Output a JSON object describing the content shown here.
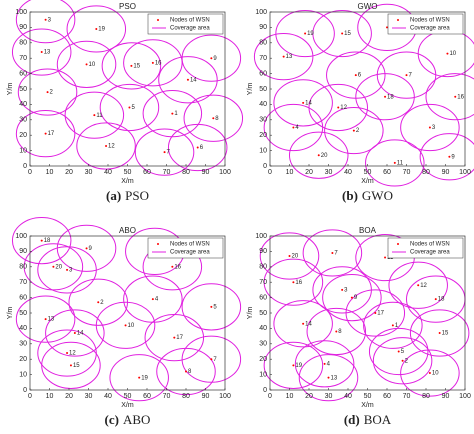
{
  "chart_data": [
    {
      "type": "scatter",
      "title": "PSO",
      "caption_label": "(a)",
      "caption": "PSO",
      "xlabel": "X/m",
      "ylabel": "Y/m",
      "xlim": [
        0,
        100
      ],
      "ylim": [
        0,
        100
      ],
      "xticks": [
        0,
        10,
        20,
        30,
        40,
        50,
        60,
        70,
        80,
        90,
        100
      ],
      "yticks": [
        0,
        10,
        20,
        30,
        40,
        50,
        60,
        70,
        80,
        90,
        100
      ],
      "legend": "upper right",
      "series": [
        {
          "name": "Nodes of WSN",
          "color": "#ff0000",
          "labels": [
            "3",
            "19",
            "13",
            "10",
            "15",
            "16",
            "9",
            "14",
            "2",
            "5",
            "11",
            "1",
            "8",
            "17",
            "12",
            "6",
            "7"
          ],
          "x": [
            8,
            34,
            6,
            29,
            52,
            63,
            93,
            81,
            9,
            51,
            33,
            73,
            94,
            8,
            39,
            86,
            69
          ],
          "values": [
            95,
            89,
            74,
            66,
            65,
            67,
            70,
            56,
            48,
            38,
            33,
            34,
            31,
            21,
            13,
            12,
            9
          ]
        }
      ],
      "coverage": {
        "name": "Coverage area",
        "color": "#e020e0",
        "radius": 15
      }
    },
    {
      "type": "scatter",
      "title": "GWO",
      "caption_label": "(b)",
      "caption": "GWO",
      "xlabel": "X/m",
      "ylabel": "Y/m",
      "xlim": [
        0,
        100
      ],
      "ylim": [
        0,
        100
      ],
      "xticks": [
        0,
        10,
        20,
        30,
        40,
        50,
        60,
        70,
        80,
        90,
        100
      ],
      "yticks": [
        0,
        10,
        20,
        30,
        40,
        50,
        60,
        70,
        80,
        90,
        100
      ],
      "legend": "upper right",
      "series": [
        {
          "name": "Nodes of WSN",
          "color": "#ff0000",
          "labels": [
            "19",
            "15",
            "17",
            "13",
            "10",
            "6",
            "7",
            "18",
            "14",
            "12",
            "16",
            "4",
            "2",
            "3",
            "20",
            "11",
            "9"
          ],
          "x": [
            18,
            37,
            60,
            7,
            91,
            44,
            70,
            59,
            17,
            35,
            95,
            12,
            43,
            82,
            25,
            64,
            92
          ],
          "values": [
            86,
            86,
            90,
            71,
            73,
            59,
            59,
            45,
            41,
            38,
            45,
            25,
            23,
            25,
            7,
            2,
            6
          ]
        }
      ],
      "coverage": {
        "name": "Coverage area",
        "color": "#e020e0",
        "radius": 15
      }
    },
    {
      "type": "scatter",
      "title": "ABO",
      "caption_label": "(c)",
      "caption": "ABO",
      "xlabel": "X/m",
      "ylabel": "Y/m",
      "xlim": [
        0,
        100
      ],
      "ylim": [
        0,
        100
      ],
      "xticks": [
        0,
        10,
        20,
        30,
        40,
        50,
        60,
        70,
        80,
        90,
        100
      ],
      "yticks": [
        0,
        10,
        20,
        30,
        40,
        50,
        60,
        70,
        80,
        90,
        100
      ],
      "legend": "upper right",
      "series": [
        {
          "name": "Nodes of WSN",
          "color": "#ff0000",
          "labels": [
            "18",
            "9",
            "20",
            "3",
            "11",
            "16",
            "2",
            "4",
            "5",
            "13",
            "10",
            "14",
            "17",
            "12",
            "15",
            "7",
            "8",
            "19"
          ],
          "x": [
            6,
            29,
            12,
            19,
            64,
            73,
            35,
            63,
            93,
            8,
            49,
            23,
            74,
            19,
            21,
            93,
            80,
            56
          ],
          "values": [
            97,
            92,
            80,
            78,
            90,
            80,
            57,
            59,
            54,
            46,
            42,
            37,
            34,
            24,
            16,
            20,
            12,
            8
          ]
        }
      ],
      "coverage": {
        "name": "Coverage area",
        "color": "#e020e0",
        "radius": 15
      }
    },
    {
      "type": "scatter",
      "title": "BOA",
      "caption_label": "(d)",
      "caption": "BOA",
      "xlabel": "X/m",
      "ylabel": "Y/m",
      "xlim": [
        0,
        100
      ],
      "ylim": [
        0,
        100
      ],
      "xticks": [
        0,
        10,
        20,
        30,
        40,
        50,
        60,
        70,
        80,
        90,
        100
      ],
      "yticks": [
        0,
        10,
        20,
        30,
        40,
        50,
        60,
        70,
        80,
        90,
        100
      ],
      "legend": "upper right",
      "series": [
        {
          "name": "Nodes of WSN",
          "color": "#ff0000",
          "labels": [
            "20",
            "7",
            "11",
            "16",
            "12",
            "3",
            "9",
            "18",
            "17",
            "14",
            "8",
            "1",
            "15",
            "5",
            "19",
            "4",
            "2",
            "10",
            "13"
          ],
          "x": [
            10,
            32,
            59,
            12,
            76,
            37,
            42,
            85,
            54,
            17,
            34,
            63,
            87,
            66,
            12,
            28,
            68,
            82,
            30
          ],
          "values": [
            87,
            89,
            86,
            70,
            68,
            65,
            60,
            59,
            50,
            43,
            38,
            42,
            37,
            25,
            16,
            17,
            19,
            11,
            8
          ]
        }
      ],
      "coverage": {
        "name": "Coverage area",
        "color": "#e020e0",
        "radius": 15
      }
    }
  ]
}
